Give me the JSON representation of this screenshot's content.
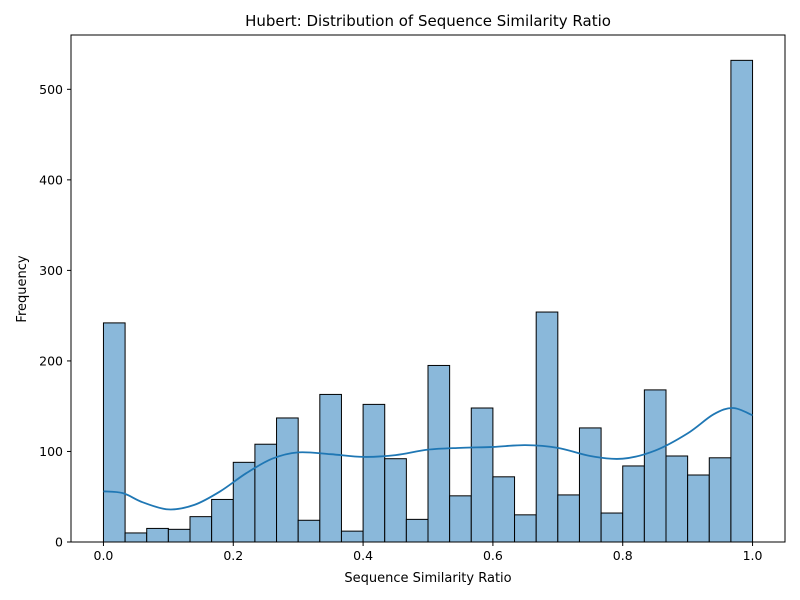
{
  "chart_data": {
    "type": "histogram",
    "title": "Hubert: Distribution of Sequence Similarity Ratio",
    "xlabel": "Sequence Similarity Ratio",
    "ylabel": "Frequency",
    "xlim": [
      -0.05,
      1.05
    ],
    "ylim": [
      0,
      560
    ],
    "x_ticks": [
      0.0,
      0.2,
      0.4,
      0.6,
      0.8,
      1.0
    ],
    "x_tick_labels": [
      "0.0",
      "0.2",
      "0.4",
      "0.6",
      "0.8",
      "1.0"
    ],
    "y_ticks": [
      0,
      100,
      200,
      300,
      400,
      500
    ],
    "y_tick_labels": [
      "0",
      "100",
      "200",
      "300",
      "400",
      "500"
    ],
    "bin_range": [
      0,
      1
    ],
    "bin_count": 30,
    "counts": [
      242,
      10,
      15,
      14,
      28,
      47,
      88,
      108,
      137,
      24,
      163,
      12,
      152,
      92,
      25,
      195,
      51,
      148,
      72,
      30,
      254,
      52,
      126,
      32,
      84,
      168,
      95,
      74,
      93,
      532
    ],
    "kde": {
      "x": [
        0.0,
        0.03,
        0.06,
        0.1,
        0.14,
        0.18,
        0.22,
        0.26,
        0.3,
        0.35,
        0.4,
        0.45,
        0.5,
        0.55,
        0.6,
        0.65,
        0.7,
        0.75,
        0.8,
        0.85,
        0.9,
        0.94,
        0.97,
        1.0
      ],
      "y": [
        56,
        54,
        44,
        36,
        41,
        56,
        76,
        92,
        99,
        97,
        94,
        96,
        102,
        104,
        105,
        107,
        104,
        95,
        92,
        101,
        120,
        141,
        148,
        140
      ]
    },
    "grid": false,
    "colors": {
      "bar_fill": "#8ab8da",
      "bar_edge": "#000000",
      "kde_line": "#1f77b4"
    }
  }
}
